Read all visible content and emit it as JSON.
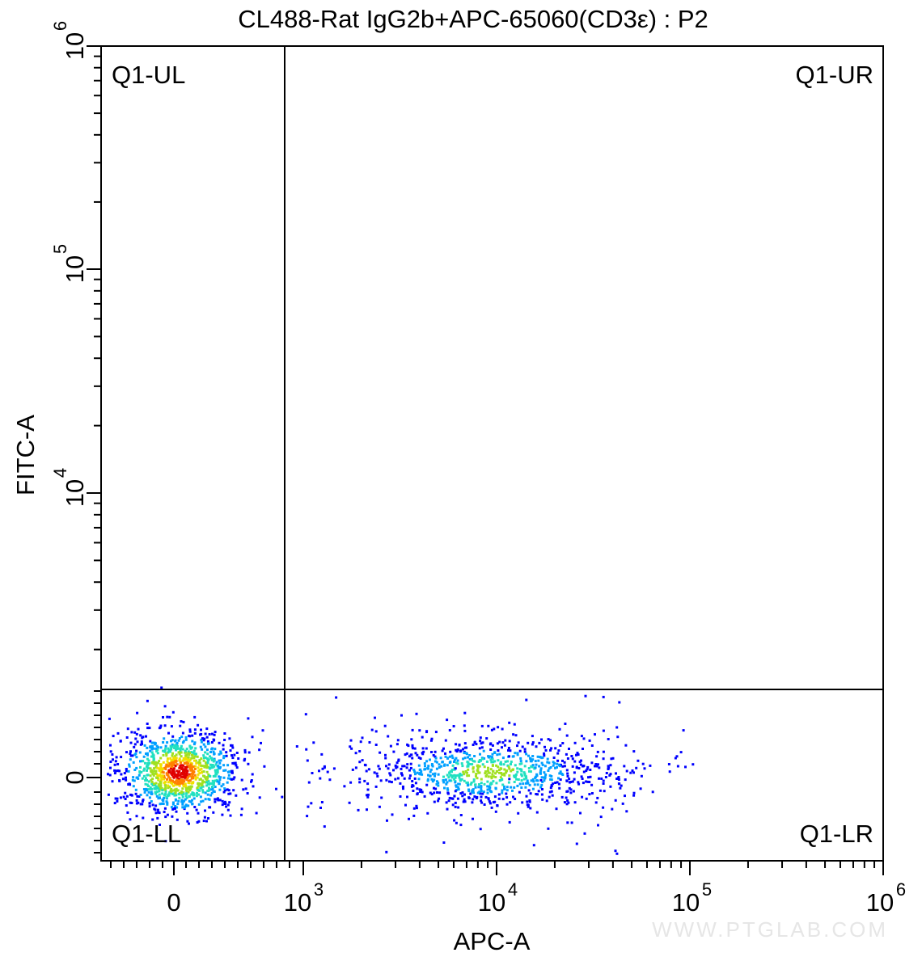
{
  "chart_data": {
    "type": "scatter",
    "title": "CL488-Rat IgG2b+APC-65060(CD3ε) : P2",
    "xlabel": "APC-A",
    "ylabel": "FITC-A",
    "x_scale": "biexponential",
    "y_scale": "biexponential",
    "x_ticks": [
      {
        "label": "0",
        "exp": ""
      },
      {
        "label": "10",
        "exp": "3"
      },
      {
        "label": "10",
        "exp": "4"
      },
      {
        "label": "10",
        "exp": "5"
      },
      {
        "label": "10",
        "exp": "6"
      }
    ],
    "y_ticks": [
      {
        "label": "0",
        "exp": ""
      },
      {
        "label": "10",
        "exp": "4"
      },
      {
        "label": "10",
        "exp": "5"
      },
      {
        "label": "10",
        "exp": "6"
      }
    ],
    "gates": {
      "x_threshold": 700,
      "y_threshold": 2300,
      "quadrants": [
        "Q1-UL",
        "Q1-UR",
        "Q1-LL",
        "Q1-LR"
      ]
    },
    "populations": [
      {
        "name": "Q1-LL",
        "x_center": 0,
        "y_center": 0,
        "density": "high",
        "peak_color": "#e02020"
      },
      {
        "name": "Q1-LR",
        "x_center": 9000,
        "y_center": 0,
        "x_range": [
          1000,
          40000
        ],
        "density": "medium",
        "peak_color": "#20c0c0"
      }
    ],
    "density_colors": [
      "#0000ff",
      "#00a0ff",
      "#20e0c0",
      "#a0e020",
      "#f0e000",
      "#ff8000",
      "#e00000"
    ],
    "grid": false
  },
  "watermark": "WWW.PTGLAB.COM"
}
